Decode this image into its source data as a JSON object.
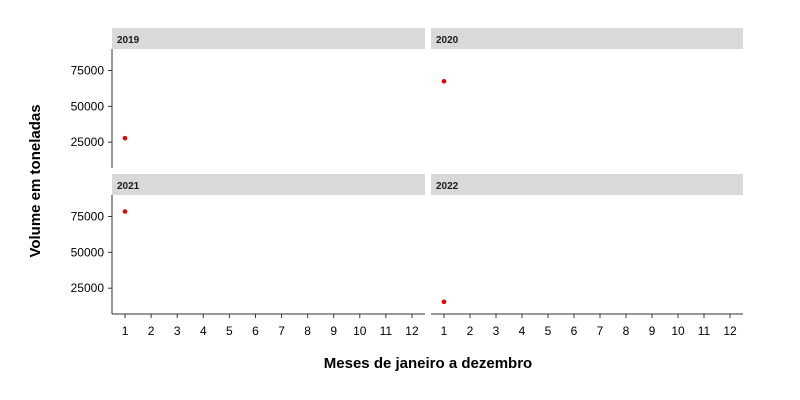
{
  "chart_data": {
    "type": "scatter",
    "xlabel": "Meses de janeiro a dezembro",
    "ylabel": "Volume em toneladas",
    "x_ticks": [
      1,
      2,
      3,
      4,
      5,
      6,
      7,
      8,
      9,
      10,
      11,
      12
    ],
    "x_tick_labels": [
      "1",
      "2",
      "3",
      "4",
      "5",
      "6",
      "7",
      "8",
      "9",
      "10",
      "11",
      "12"
    ],
    "xlim": [
      0.5,
      12.5
    ],
    "y_ticks": [
      25000,
      50000,
      75000
    ],
    "y_tick_labels": [
      "25000",
      "50000",
      "75000"
    ],
    "ylim": [
      7000,
      90000
    ],
    "point_color": "#e60000",
    "grid": false,
    "facets": [
      {
        "label": "2019",
        "points": [
          {
            "x": 1,
            "y": 27800
          }
        ]
      },
      {
        "label": "2020",
        "points": [
          {
            "x": 1,
            "y": 67500
          }
        ]
      },
      {
        "label": "2021",
        "points": [
          {
            "x": 1,
            "y": 78500
          }
        ]
      },
      {
        "label": "2022",
        "points": [
          {
            "x": 1,
            "y": 15500
          }
        ]
      }
    ]
  }
}
